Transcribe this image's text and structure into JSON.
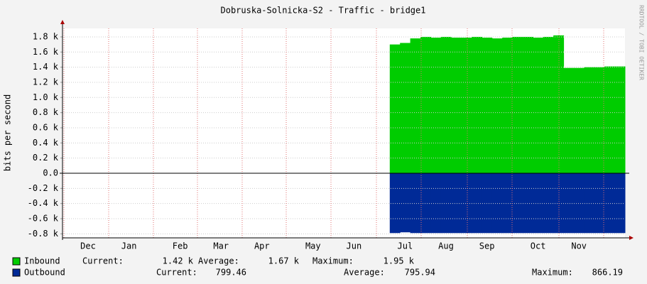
{
  "chart_data": {
    "type": "area",
    "title": "Dobruska-Solnicka-S2 - Traffic - bridge1",
    "y_label": "bits per second",
    "watermark": "RRDTOOL / TOBI OETIKER",
    "categories": [
      null,
      null,
      "Dec",
      null,
      null,
      null,
      "Jan",
      null,
      null,
      null,
      null,
      "Feb",
      null,
      null,
      null,
      "Mar",
      null,
      null,
      null,
      "Apr",
      null,
      null,
      null,
      null,
      "May",
      null,
      null,
      null,
      "Jun",
      null,
      null,
      null,
      null,
      "Jul",
      null,
      null,
      null,
      "Aug",
      null,
      null,
      null,
      "Sep",
      null,
      null,
      null,
      null,
      "Oct",
      null,
      null,
      null,
      "Nov",
      null,
      null,
      null,
      null
    ],
    "series": [
      {
        "name": "Inbound",
        "color": "#00cc00",
        "values": [
          null,
          null,
          null,
          null,
          null,
          null,
          null,
          null,
          null,
          null,
          null,
          null,
          null,
          null,
          null,
          null,
          null,
          null,
          null,
          null,
          null,
          null,
          null,
          null,
          null,
          null,
          null,
          null,
          null,
          null,
          null,
          null,
          1700,
          1720,
          1780,
          1800,
          1790,
          1800,
          1790,
          1790,
          1800,
          1790,
          1780,
          1790,
          1800,
          1800,
          1790,
          1800,
          1820,
          1390,
          1390,
          1400,
          1400,
          1410,
          1410
        ],
        "stats": [
          {
            "label": "Current:",
            "value": "1.42 k"
          },
          {
            "label": "Average:",
            "value": "1.67 k"
          },
          {
            "label": "Maximum:",
            "value": "1.95 k"
          }
        ]
      },
      {
        "name": "Outbound",
        "color": "#002a97",
        "values": [
          null,
          null,
          null,
          null,
          null,
          null,
          null,
          null,
          null,
          null,
          null,
          null,
          null,
          null,
          null,
          null,
          null,
          null,
          null,
          null,
          null,
          null,
          null,
          null,
          null,
          null,
          null,
          null,
          null,
          null,
          null,
          null,
          -790,
          -780,
          -790,
          -790,
          -790,
          -790,
          -790,
          -790,
          -790,
          -790,
          -790,
          -790,
          -790,
          -790,
          -790,
          -790,
          -790,
          -790,
          -790,
          -790,
          -790,
          -790,
          -790
        ],
        "stats": [
          {
            "label": "Current:",
            "value": "799.46"
          },
          {
            "label": "Average:",
            "value": "795.94"
          },
          {
            "label": "Maximum:",
            "value": "866.19"
          }
        ]
      }
    ],
    "ylim": [
      -853,
      1912
    ],
    "yticks": [
      {
        "value": -800,
        "label": "-0.8 k"
      },
      {
        "value": -600,
        "label": "-0.6 k"
      },
      {
        "value": -400,
        "label": "-0.4 k"
      },
      {
        "value": -200,
        "label": "-0.2 k"
      },
      {
        "value": 0,
        "label": "0.0"
      },
      {
        "value": 200,
        "label": "0.2 k"
      },
      {
        "value": 400,
        "label": "0.4 k"
      },
      {
        "value": 600,
        "label": "0.6 k"
      },
      {
        "value": 800,
        "label": "0.8 k"
      },
      {
        "value": 1000,
        "label": "1.0 k"
      },
      {
        "value": 1200,
        "label": "1.2 k"
      },
      {
        "value": 1400,
        "label": "1.4 k"
      },
      {
        "value": 1600,
        "label": "1.6 k"
      },
      {
        "value": 1800,
        "label": "1.8 k"
      }
    ],
    "grid": true
  }
}
